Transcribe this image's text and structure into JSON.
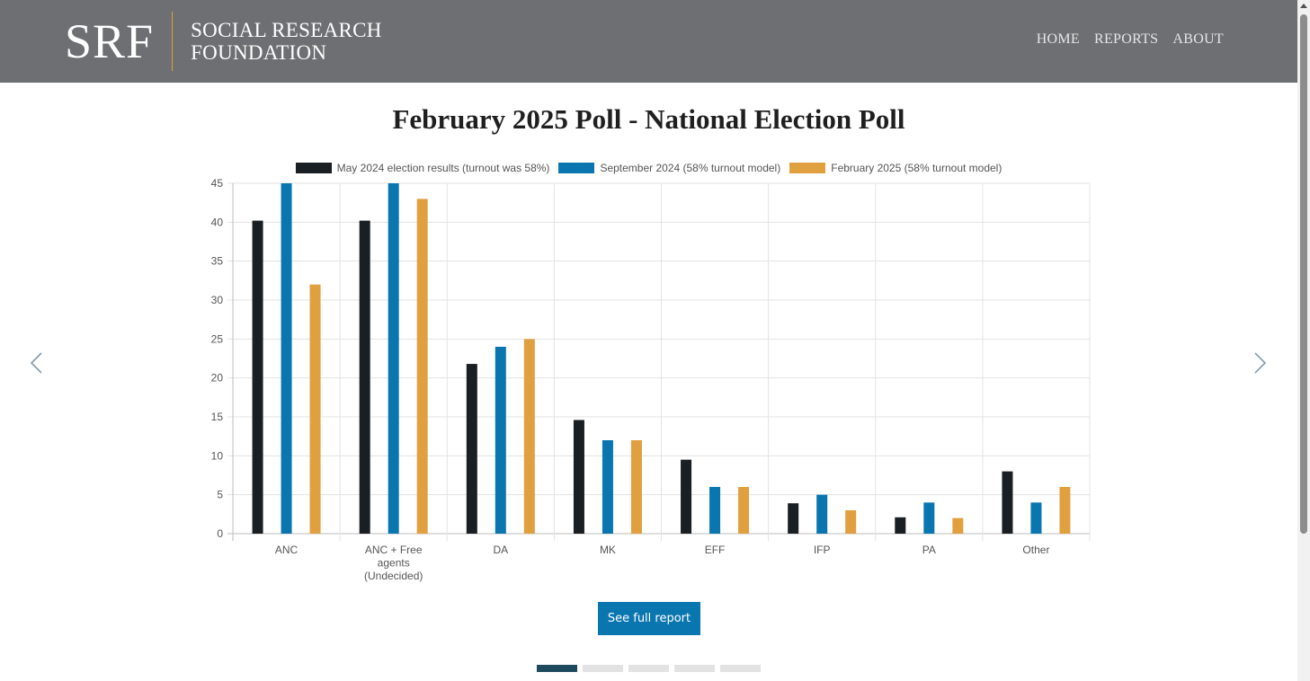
{
  "header": {
    "logo_mark": "SRF",
    "logo_line1": "SOCIAL RESEARCH",
    "logo_line2": "FOUNDATION",
    "nav": [
      "HOME",
      "REPORTS",
      "ABOUT"
    ]
  },
  "slide": {
    "title": "February 2025 Poll - National Election Poll",
    "button_label": "See full report",
    "dot_count": 5,
    "active_dot": 0,
    "prev_icon": "chevron-left-icon",
    "next_icon": "chevron-right-icon"
  },
  "chart_data": {
    "type": "bar",
    "title": "",
    "xlabel": "",
    "ylabel": "",
    "ylim": [
      0,
      45
    ],
    "yticks": [
      0,
      5,
      10,
      15,
      20,
      25,
      30,
      35,
      40,
      45
    ],
    "grid": true,
    "legend_position": "top",
    "categories": [
      [
        "ANC"
      ],
      [
        "ANC + Free",
        "agents",
        "(Undecided)"
      ],
      [
        "DA"
      ],
      [
        "MK"
      ],
      [
        "EFF"
      ],
      [
        "IFP"
      ],
      [
        "PA"
      ],
      [
        "Other"
      ]
    ],
    "series": [
      {
        "name": "May 2024 election results (turnout was 58%)",
        "color": "#1a1f23",
        "values": [
          40.2,
          40.2,
          21.8,
          14.6,
          9.5,
          3.9,
          2.1,
          8.0
        ]
      },
      {
        "name": "September 2024 (58% turnout model)",
        "color": "#0a76b0",
        "values": [
          45,
          45,
          24,
          12,
          6,
          5,
          4,
          4
        ]
      },
      {
        "name": "February 2025 (58% turnout model)",
        "color": "#e0a040",
        "values": [
          32,
          43,
          25,
          12,
          6,
          3,
          2,
          6
        ]
      }
    ]
  }
}
